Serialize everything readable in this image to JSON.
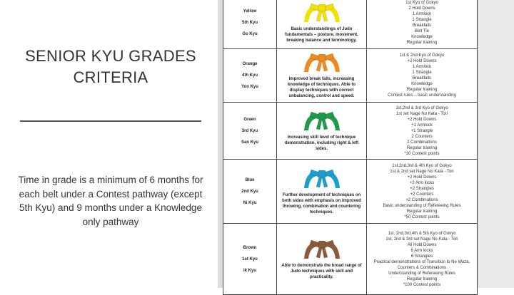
{
  "left": {
    "title": "SENIOR KYU GRADES CRITERIA",
    "body": "Time in grade is a minimum of 6 months for each belt under a Contest pathway (except 5th Kyu) and 9 months under a Knowledge only pathway"
  },
  "grades": [
    {
      "color_name": "Yellow",
      "kyu": "5th Kyu",
      "japanese": "Go Kyu",
      "belt_color": "#f2e000",
      "description": "Basic understandings of Judo fundamentals – posture, movement, breaking balance and terminology.",
      "requirements": [
        "1st Kyo of Gokyo",
        "2 Hold Downs",
        "1 Armlock",
        "1 Strangle",
        "Breakfalls",
        "Belt Tie",
        "Knowledge",
        "Regular training"
      ]
    },
    {
      "color_name": "Orange",
      "kyu": "4th Kyu",
      "japanese": "Yon Kyu",
      "belt_color": "#ef8a22",
      "description": "Improved break falls, increasing knowledge of techniques. Able to display techniques with correct unbalancing, control and speed.",
      "requirements": [
        "1st & 2nd Kyo of Gokyo",
        "+2 Hold Downs",
        "1 Armlock",
        "1 Strangle",
        "Breakfalls",
        "Knowledge",
        "Regular training",
        "Contest rules – basic understanding"
      ]
    },
    {
      "color_name": "Green",
      "kyu": "3rd Kyu",
      "japanese": "San Kyu",
      "belt_color": "#1f9a4a",
      "description": "Increasing skill level of technique demonstration, including right & left sides.",
      "requirements": [
        "1st,2nd & 3rd Kyo of Gokyo",
        "1st set Nage No Kata - Tori",
        "+2 Hold Downs",
        "+1 Armlock",
        "+1 Strangle",
        "2 Counters",
        "2 Combinations",
        "Regular training",
        "*30 Contest points"
      ]
    },
    {
      "color_name": "Blue",
      "kyu": "2nd Kyu",
      "japanese": "Ni Kyu",
      "belt_color": "#1a9fcf",
      "description": "Further development of techniques on both sides with emphasis on improved throwing, combination and countering techniques.",
      "requirements": [
        "1st,2nd,3rd & 4th Kyo of Gokyo",
        "1st & 2nd set Nage No Kata - Tori",
        "+2 Hold Downs",
        "+2 Arm locks",
        "+2 Strangles",
        "+2 Counters",
        "+2 Combinations",
        "Basic understanding of Refereeing Rules",
        "Regular training",
        "*50 Contest points"
      ]
    },
    {
      "color_name": "Brown",
      "kyu": "1st Kyu",
      "japanese": "Ik Kyu",
      "belt_color": "#8a5a3a",
      "description": "Able to demonstrate the broad range of Judo techniques with skill and practicality.",
      "requirements": [
        "1st, 2nd,3rd,4th & 5th Kyo of Gokyo",
        "1st, 2nd & 3rd set Nage No Kata - Tori",
        "All Hold Downs",
        "6 Arm locks",
        "6 Strangles",
        "Practical demonstrations of Transition to Ne Waza, Counters & Combinations",
        "Understanding of Refereeing Rules",
        "Regular training",
        "*100 Contest points"
      ]
    }
  ]
}
